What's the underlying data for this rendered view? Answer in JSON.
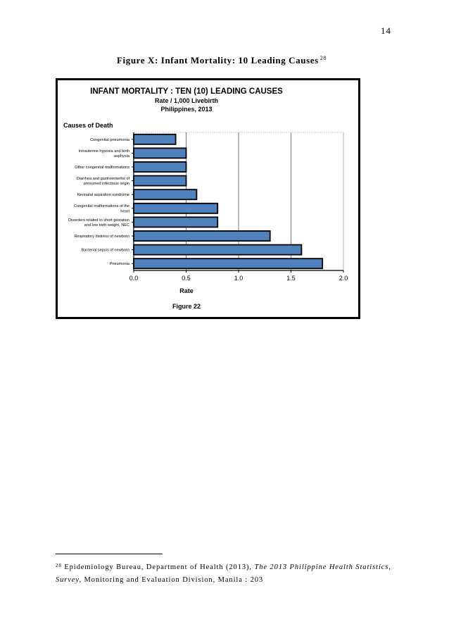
{
  "page_number": "14",
  "figure_caption": {
    "text": "Figure X: Infant Mortality: 10 Leading Causes",
    "footnote_ref": "28"
  },
  "chart_data": {
    "type": "bar",
    "orientation": "horizontal",
    "title": "INFANT MORTALITY : TEN (10) LEADING CAUSES",
    "subtitle_lines": [
      "Rate / 1,000 Livebirth",
      "Philippines, 2013"
    ],
    "ylabel": "Causes of Death",
    "xlabel": "Rate",
    "figure_label": "Figure 22",
    "categories": [
      [
        "Congenital pneumonia"
      ],
      [
        "Intrauterine hypoxia and birth",
        "asphyxia"
      ],
      [
        "Other congenital malformations"
      ],
      [
        "Diarrhea and gastroenteritis of",
        "presumed infectious origin"
      ],
      [
        "Neonatal aspiration syndrome"
      ],
      [
        "Congenital malformations of the",
        "heart"
      ],
      [
        "Disorders related to short gestation",
        "and low birth  weight, NEC"
      ],
      [
        "Respiratory distress of newborn"
      ],
      [
        "Bacterial sepsis of newborn"
      ],
      [
        "Pneumonia"
      ]
    ],
    "values": [
      0.4,
      0.5,
      0.5,
      0.5,
      0.6,
      0.8,
      0.8,
      1.3,
      1.6,
      1.8
    ],
    "xlim": [
      0,
      2.0
    ],
    "xticks": [
      "0.0",
      "0.5",
      "1.0",
      "1.5",
      "2.0"
    ],
    "grid": "vertical",
    "bar_color": "#4f81bd"
  },
  "footnote": {
    "marker": "28",
    "text_before": " Epidemiology Bureau, Department of Health (2013), ",
    "italic": "The 2013 Philippine Health Statistics, Survey,",
    "text_after": " Monitoring and Evaluation Division, Manila : 203"
  }
}
